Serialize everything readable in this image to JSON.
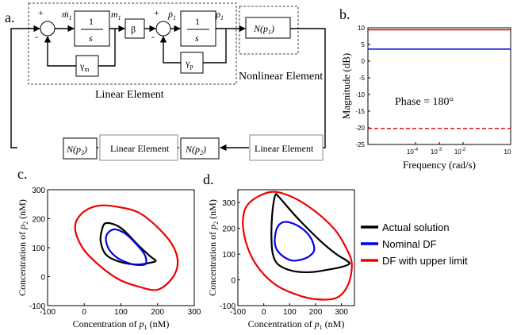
{
  "panel_labels": {
    "a": "a.",
    "b": "b.",
    "c": "c.",
    "d": "d."
  },
  "block_diagram": {
    "linear_element_label": "Linear Element",
    "nonlinear_element_label": "Nonlinear Element",
    "integrator_num": "1",
    "integrator_den": "s",
    "beta": "β",
    "gamma_m": "γ",
    "gamma_m_sub": "m",
    "gamma_p": "γ",
    "gamma_p_sub": "p",
    "signal_mdot": "ṁ",
    "signal_mdot_sub": "1",
    "signal_m": "m",
    "signal_m_sub": "1",
    "signal_pdot": "ṗ",
    "signal_pdot_sub": "1",
    "signal_p": "p",
    "signal_p_sub": "1",
    "plus": "+",
    "minus": "-",
    "n_p1": {
      "pre": "N(p",
      "sub": "1",
      "post": ")"
    },
    "n_p2": {
      "pre": "N(p",
      "sub": "2",
      "post": ")"
    },
    "n_p3": {
      "pre": "N(p",
      "sub": "3",
      "post": ")"
    },
    "lower_linear_1": "Linear Element",
    "lower_linear_2": "Linear Element"
  },
  "chart_data": [
    {
      "id": "b",
      "type": "line",
      "xlabel": "Frequency (rad/s)",
      "ylabel": "Magnitude (dB)",
      "x_scale": "log",
      "xlim": [
        1e-06,
        1
      ],
      "ylim": [
        -25,
        10
      ],
      "x_ticks": [
        {
          "v": 0.0001,
          "base": "10",
          "exp": "-4"
        },
        {
          "v": 0.001,
          "base": "10",
          "exp": "-3"
        },
        {
          "v": 0.01,
          "base": "10",
          "exp": "-2"
        },
        {
          "v": 1,
          "base": "10",
          "exp": ""
        }
      ],
      "y_ticks": [
        10,
        5,
        0,
        -5,
        -10,
        -15,
        -20,
        -25
      ],
      "annotation": "Phase = 180°",
      "series": [
        {
          "color": "#cc0000",
          "style": "solid",
          "y": 9.4
        },
        {
          "color": "#0000cc",
          "style": "solid",
          "y": 3.6
        },
        {
          "color": "#cc0000",
          "style": "dashed",
          "y": -20.2
        }
      ]
    },
    {
      "id": "c",
      "type": "line",
      "xlabel_pre": "Concentration of ",
      "xlabel_var": "p",
      "xlabel_sub": "1",
      "xlabel_post": " (nM)",
      "ylabel_pre": "Concentration of ",
      "ylabel_var": "p",
      "ylabel_sub": "2",
      "ylabel_post": " (nM)",
      "xlim": [
        -100,
        300
      ],
      "ylim": [
        -100,
        300
      ],
      "x_ticks": [
        -100,
        0,
        100,
        200,
        300
      ],
      "y_ticks": [
        -100,
        0,
        100,
        200,
        300
      ],
      "series": [
        {
          "color": "#000000",
          "points": [
            [
              60,
              185
            ],
            [
              100,
              168
            ],
            [
              150,
              105
            ],
            [
              180,
              70
            ],
            [
              195,
              55
            ],
            [
              180,
              48
            ],
            [
              145,
              42
            ],
            [
              100,
              50
            ],
            [
              60,
              75
            ],
            [
              45,
              120
            ],
            [
              48,
              160
            ],
            [
              60,
              185
            ]
          ]
        },
        {
          "color": "#0000ee",
          "points": [
            [
              80,
              163
            ],
            [
              110,
              150
            ],
            [
              140,
              115
            ],
            [
              165,
              75
            ],
            [
              168,
              45
            ],
            [
              150,
              40
            ],
            [
              125,
              45
            ],
            [
              90,
              65
            ],
            [
              65,
              100
            ],
            [
              60,
              140
            ],
            [
              80,
              163
            ]
          ]
        },
        {
          "color": "#ee0000",
          "points": [
            [
              95,
              240
            ],
            [
              150,
              220
            ],
            [
              200,
              170
            ],
            [
              240,
              110
            ],
            [
              255,
              50
            ],
            [
              240,
              -5
            ],
            [
              200,
              -45
            ],
            [
              150,
              -35
            ],
            [
              95,
              -10
            ],
            [
              40,
              40
            ],
            [
              -5,
              100
            ],
            [
              -25,
              170
            ],
            [
              -5,
              220
            ],
            [
              40,
              245
            ],
            [
              95,
              240
            ]
          ]
        }
      ]
    },
    {
      "id": "d",
      "type": "line",
      "xlabel_pre": "Concentration of ",
      "xlabel_var": "p",
      "xlabel_sub": "1",
      "xlabel_post": " (nM)",
      "ylabel_pre": "Concentration of ",
      "ylabel_var": "p",
      "ylabel_sub": "2",
      "ylabel_post": " (nM)",
      "xlim": [
        -100,
        350
      ],
      "ylim": [
        -100,
        350
      ],
      "x_ticks": [
        -100,
        0,
        100,
        200,
        300
      ],
      "y_ticks": [
        -100,
        0,
        100,
        200,
        300
      ],
      "series": [
        {
          "name": "Actual solution",
          "color": "#000000",
          "points": [
            [
              45,
              330
            ],
            [
              60,
              320
            ],
            [
              130,
              240
            ],
            [
              220,
              150
            ],
            [
              280,
              100
            ],
            [
              320,
              75
            ],
            [
              330,
              62
            ],
            [
              300,
              50
            ],
            [
              250,
              40
            ],
            [
              180,
              30
            ],
            [
              110,
              35
            ],
            [
              55,
              60
            ],
            [
              35,
              100
            ],
            [
              30,
              150
            ],
            [
              30,
              210
            ],
            [
              35,
              280
            ],
            [
              45,
              330
            ]
          ]
        },
        {
          "name": "Nominal DF",
          "color": "#0000ee",
          "points": [
            [
              90,
              225
            ],
            [
              140,
              205
            ],
            [
              180,
              165
            ],
            [
              195,
              120
            ],
            [
              180,
              95
            ],
            [
              150,
              80
            ],
            [
              110,
              75
            ],
            [
              70,
              95
            ],
            [
              45,
              130
            ],
            [
              45,
              180
            ],
            [
              60,
              215
            ],
            [
              90,
              225
            ]
          ]
        },
        {
          "name": "DF with upper limit",
          "color": "#ee0000",
          "points": [
            [
              20,
              340
            ],
            [
              90,
              330
            ],
            [
              180,
              280
            ],
            [
              270,
              200
            ],
            [
              320,
              120
            ],
            [
              340,
              60
            ],
            [
              325,
              -20
            ],
            [
              280,
              -70
            ],
            [
              200,
              -75
            ],
            [
              120,
              -55
            ],
            [
              40,
              -15
            ],
            [
              -30,
              60
            ],
            [
              -70,
              150
            ],
            [
              -80,
              240
            ],
            [
              -55,
              300
            ],
            [
              20,
              340
            ]
          ]
        }
      ],
      "legend_placement": "right"
    }
  ]
}
